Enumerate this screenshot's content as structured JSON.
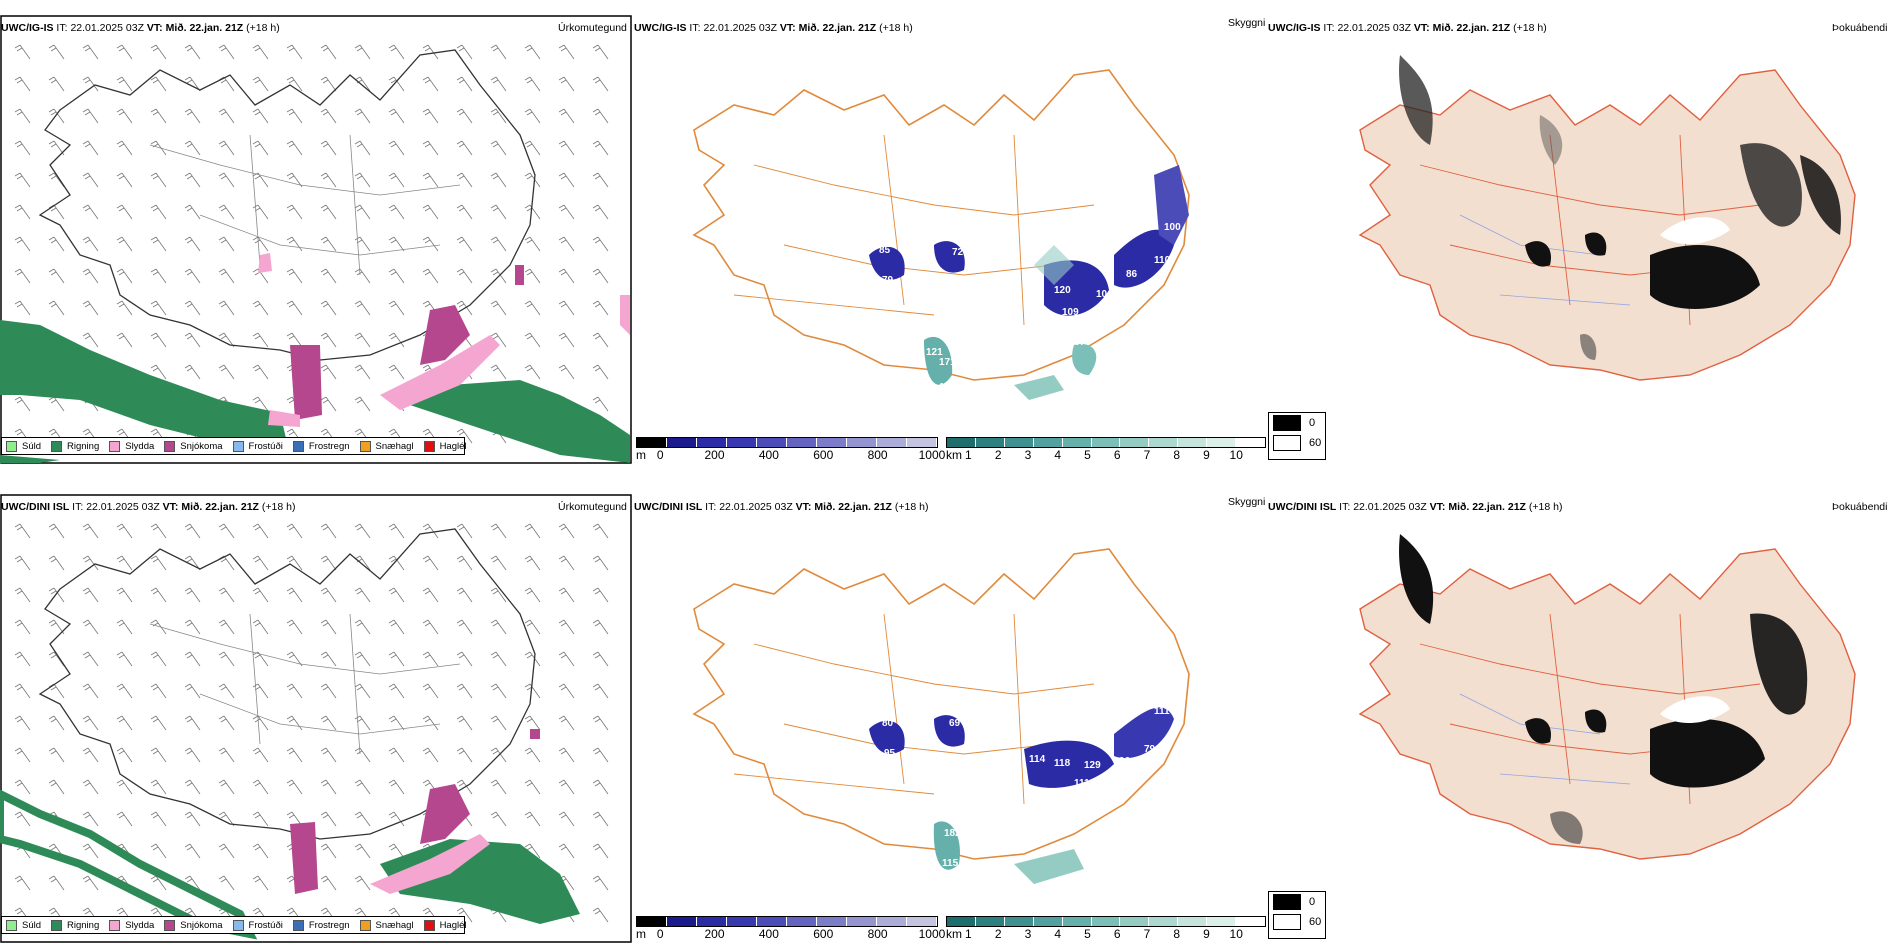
{
  "rows": [
    {
      "model": "UWC/IG-IS",
      "it_label": "IT:",
      "it_value": "22.01.2025 03Z",
      "vt_label": "VT:",
      "vt_value": "Mið. 22.jan. 21Z",
      "lead": "(+18 h)",
      "panel1_title": "Úrkomutegund",
      "panel2_title": "Skyggni",
      "panel3_title": "Þokuábendi",
      "vis_labels": [
        "85",
        "72",
        "79",
        "120",
        "109",
        "104",
        "86",
        "110",
        "100",
        "87",
        "171",
        "138",
        "121"
      ]
    },
    {
      "model": "UWC/DINI ISL",
      "it_label": "IT:",
      "it_value": "22.01.2025 03Z",
      "vt_label": "VT:",
      "vt_value": "Mið. 22.jan. 21Z",
      "lead": "(+18 h)",
      "panel1_title": "Úrkomutegund",
      "panel2_title": "Skyggni",
      "panel3_title": "Þokuábendi",
      "vis_labels": [
        "80",
        "69",
        "95",
        "114",
        "118",
        "129",
        "96",
        "79",
        "111",
        "174",
        "182",
        "115",
        "111"
      ]
    }
  ],
  "precip_legend": [
    {
      "label": "Súld",
      "color": "#90ee90"
    },
    {
      "label": "Rigning",
      "color": "#2e8b57"
    },
    {
      "label": "Slydda",
      "color": "#f4a6d0"
    },
    {
      "label": "Snjókoma",
      "color": "#b5478f"
    },
    {
      "label": "Frostúði",
      "color": "#87b9ec"
    },
    {
      "label": "Frostregn",
      "color": "#3a6fb8"
    },
    {
      "label": "Snæhagl",
      "color": "#f0a020"
    },
    {
      "label": "Haglél",
      "color": "#e01010"
    }
  ],
  "ceiling_scale": {
    "unit": "m",
    "ticks": [
      "0",
      "200",
      "400",
      "600",
      "800",
      "1000"
    ],
    "colors": [
      "#000000",
      "#1a1a8c",
      "#2b2ba6",
      "#3838b0",
      "#4c4cb8",
      "#6464c0",
      "#7c7cc8",
      "#9494d0",
      "#acacd8",
      "#c4c4e0"
    ]
  },
  "visibility_scale": {
    "unit": "km",
    "ticks": [
      "1",
      "2",
      "3",
      "4",
      "5",
      "6",
      "7",
      "8",
      "9",
      "10"
    ],
    "colors": [
      "#1e6e6e",
      "#2d8080",
      "#3f9090",
      "#52a0a0",
      "#66b0ac",
      "#7cbfb8",
      "#94ccc4",
      "#acd8d0",
      "#c4e4dc",
      "#dcf0ea",
      "#ffffff"
    ]
  },
  "fog_legend": {
    "items": [
      {
        "label": "0",
        "color": "#000000"
      },
      {
        "label": "60",
        "color": "#ffffff"
      }
    ]
  }
}
